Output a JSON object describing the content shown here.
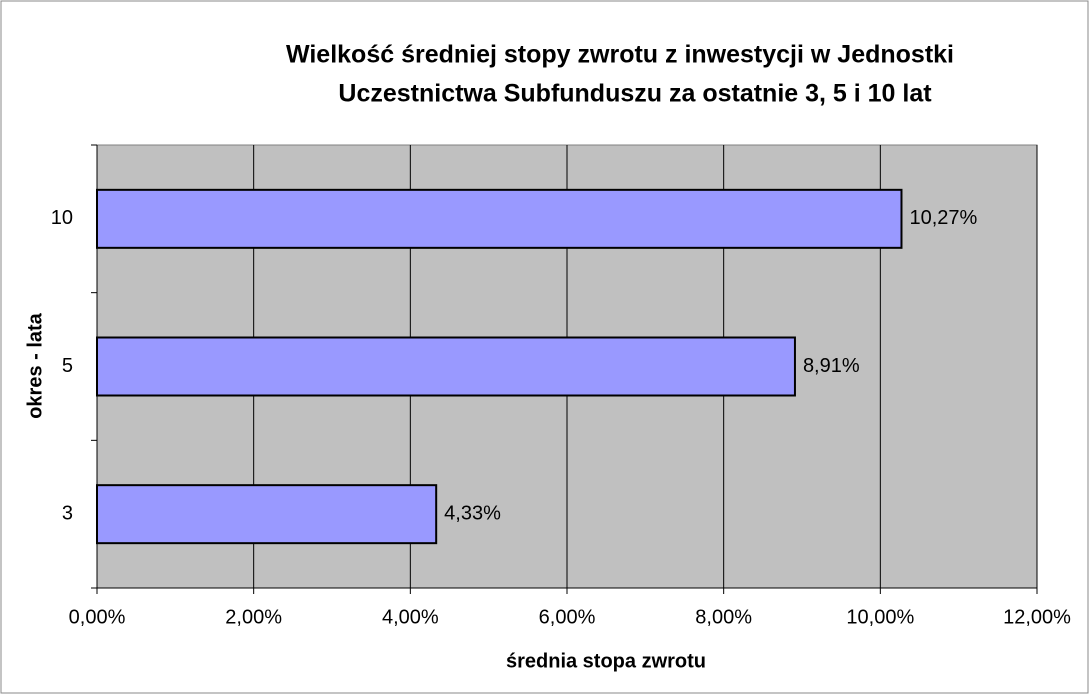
{
  "chart_data": {
    "type": "bar",
    "orientation": "horizontal",
    "title": [
      "Wielkość średniej stopy zwrotu z inwestycji w Jednostki",
      "Uczestnictwa Subfunduszu za ostatnie 3, 5 i 10 lat"
    ],
    "x_label": "średnia stopa zwrotu",
    "y_label": "okres - lata",
    "categories": [
      "3",
      "5",
      "10"
    ],
    "values": [
      4.33,
      8.91,
      10.27
    ],
    "value_labels": [
      "4,33%",
      "8,91%",
      "10,27%"
    ],
    "color": "#9999ff",
    "background": "#c0c0c0",
    "xlim": [
      0,
      12
    ],
    "xticks": [
      {
        "value": 0,
        "label": "0,00%"
      },
      {
        "value": 2,
        "label": "2,00%"
      },
      {
        "value": 4,
        "label": "4,00%"
      },
      {
        "value": 6,
        "label": "6,00%"
      },
      {
        "value": 8,
        "label": "8,00%"
      },
      {
        "value": 10,
        "label": "10,00%"
      },
      {
        "value": 12,
        "label": "12,00%"
      }
    ],
    "grid": true
  }
}
